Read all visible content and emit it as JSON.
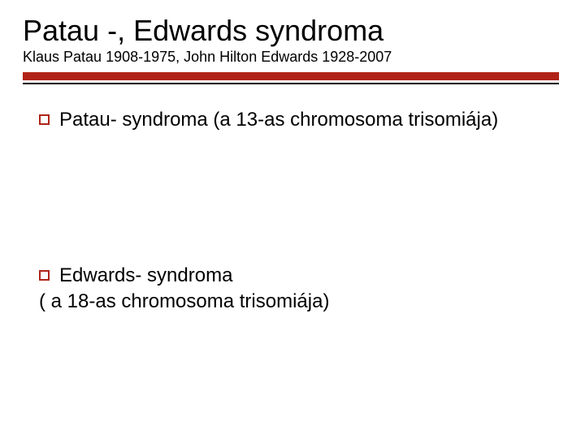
{
  "slide": {
    "title": "Patau -, Edwards syndroma",
    "subtitle": "Klaus Patau 1908-1975, John Hilton Edwards 1928-2007",
    "accent_color": "#b02418",
    "underline_thin_color": "#000000",
    "background_color": "#ffffff",
    "text_color": "#000000",
    "title_fontsize": 36,
    "subtitle_fontsize": 18,
    "body_fontsize": 24,
    "items": [
      {
        "bullet": true,
        "text": "Patau- syndroma (a 13-as chromosoma trisomiája)"
      },
      {
        "bullet": true,
        "text": "Edwards- syndroma"
      }
    ],
    "plain_line": "( a 18-as chromosoma trisomiája)"
  }
}
